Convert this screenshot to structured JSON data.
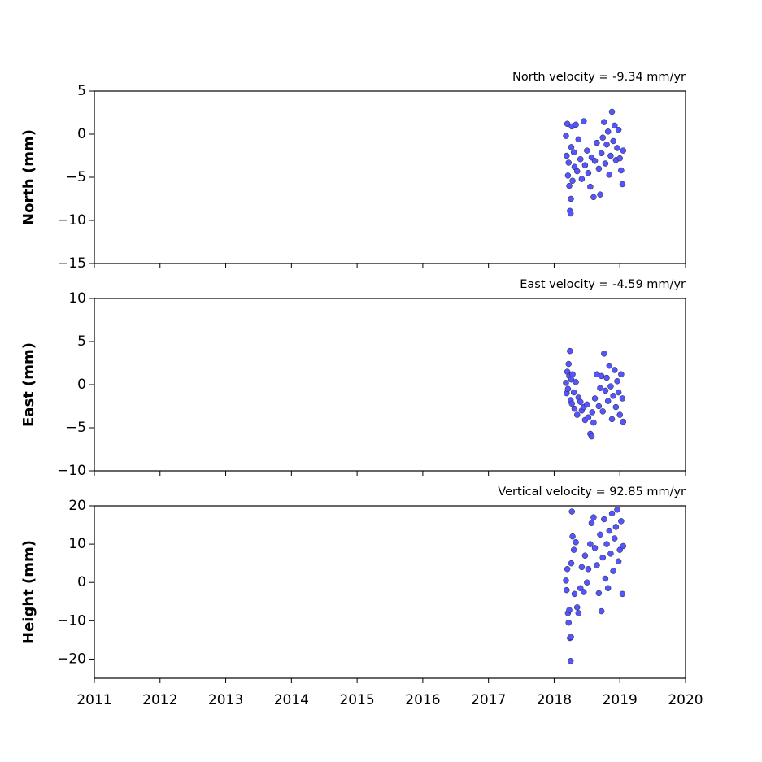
{
  "chart_data": [
    {
      "type": "scatter",
      "title": "North velocity = -9.34 mm/yr",
      "ylabel": "North (mm)",
      "color": "#5555ff",
      "x": [
        2018.18,
        2018.19,
        2018.2,
        2018.21,
        2018.22,
        2018.23,
        2018.24,
        2018.25,
        2018.255,
        2018.26,
        2018.27,
        2018.28,
        2018.3,
        2018.31,
        2018.33,
        2018.35,
        2018.37,
        2018.4,
        2018.42,
        2018.45,
        2018.47,
        2018.5,
        2018.52,
        2018.55,
        2018.57,
        2018.6,
        2018.62,
        2018.65,
        2018.68,
        2018.7,
        2018.72,
        2018.74,
        2018.76,
        2018.78,
        2018.8,
        2018.82,
        2018.84,
        2018.86,
        2018.88,
        2018.9,
        2018.92,
        2018.94,
        2018.96,
        2018.98,
        2019.0,
        2019.02,
        2019.04,
        2019.05
      ],
      "values": [
        -0.2,
        -2.5,
        1.2,
        -4.8,
        -3.3,
        -6.0,
        -8.9,
        -9.2,
        -7.5,
        -1.5,
        0.9,
        -5.4,
        -2.1,
        -3.8,
        1.1,
        -4.3,
        -0.6,
        -2.9,
        -5.2,
        1.5,
        -3.6,
        -1.9,
        -4.5,
        -6.1,
        -2.7,
        -7.3,
        -3.1,
        -1.0,
        -4.0,
        -7.0,
        -2.2,
        -0.4,
        1.4,
        -3.4,
        -1.2,
        0.3,
        -4.7,
        -2.5,
        2.6,
        -0.8,
        1.0,
        -3.0,
        -1.6,
        0.5,
        -2.8,
        -4.2,
        -5.8,
        -1.9
      ],
      "xlim": [
        2011,
        2020
      ],
      "xticks": [
        2011,
        2012,
        2013,
        2014,
        2015,
        2016,
        2017,
        2018,
        2019,
        2020
      ],
      "ylim": [
        -15,
        5
      ],
      "yticks": [
        {
          "value": -15,
          "label": "−15"
        },
        {
          "value": -10,
          "label": "−10"
        },
        {
          "value": -5,
          "label": "−5"
        },
        0,
        5
      ]
    },
    {
      "type": "scatter",
      "title": "East velocity = -4.59 mm/yr",
      "ylabel": "East (mm)",
      "color": "#5555ff",
      "x": [
        2018.18,
        2018.19,
        2018.2,
        2018.21,
        2018.22,
        2018.23,
        2018.24,
        2018.25,
        2018.26,
        2018.27,
        2018.28,
        2018.3,
        2018.31,
        2018.33,
        2018.35,
        2018.37,
        2018.4,
        2018.42,
        2018.45,
        2018.47,
        2018.5,
        2018.52,
        2018.55,
        2018.57,
        2018.58,
        2018.6,
        2018.62,
        2018.65,
        2018.68,
        2018.7,
        2018.72,
        2018.74,
        2018.76,
        2018.78,
        2018.8,
        2018.82,
        2018.84,
        2018.86,
        2018.88,
        2018.9,
        2018.92,
        2018.94,
        2018.96,
        2018.98,
        2019.0,
        2019.02,
        2019.04,
        2019.05
      ],
      "values": [
        0.2,
        -1.0,
        1.5,
        -0.5,
        2.4,
        1.0,
        3.9,
        -1.8,
        0.6,
        -2.2,
        1.2,
        -0.9,
        -2.8,
        0.3,
        -3.5,
        -1.5,
        -2.0,
        -3.0,
        -2.6,
        -4.1,
        -2.3,
        -3.8,
        -5.7,
        -6.0,
        -3.2,
        -4.4,
        -1.6,
        1.2,
        -2.5,
        -0.4,
        1.0,
        -3.1,
        3.6,
        -0.7,
        0.8,
        -1.9,
        2.2,
        -0.2,
        -4.0,
        -1.3,
        1.7,
        -2.6,
        0.4,
        -0.9,
        -3.5,
        1.2,
        -1.6,
        -4.3
      ],
      "xlim": [
        2011,
        2020
      ],
      "xticks": [
        2011,
        2012,
        2013,
        2014,
        2015,
        2016,
        2017,
        2018,
        2019,
        2020
      ],
      "ylim": [
        -10,
        10
      ],
      "yticks": [
        {
          "value": -10,
          "label": "−10"
        },
        {
          "value": -5,
          "label": "−5"
        },
        0,
        5,
        10
      ]
    },
    {
      "type": "scatter",
      "title": "Vertical velocity = 92.85 mm/yr",
      "ylabel": "Height (mm)",
      "color": "#5555ff",
      "x": [
        2018.18,
        2018.19,
        2018.2,
        2018.21,
        2018.22,
        2018.23,
        2018.24,
        2018.25,
        2018.255,
        2018.26,
        2018.27,
        2018.28,
        2018.3,
        2018.31,
        2018.33,
        2018.35,
        2018.37,
        2018.4,
        2018.42,
        2018.45,
        2018.47,
        2018.5,
        2018.52,
        2018.55,
        2018.57,
        2018.6,
        2018.62,
        2018.65,
        2018.68,
        2018.7,
        2018.72,
        2018.74,
        2018.76,
        2018.78,
        2018.8,
        2018.82,
        2018.84,
        2018.86,
        2018.88,
        2018.9,
        2018.92,
        2018.94,
        2018.96,
        2018.98,
        2019.0,
        2019.02,
        2019.04,
        2019.05
      ],
      "values": [
        0.5,
        -2.0,
        3.5,
        -8.0,
        -10.5,
        -7.2,
        -14.5,
        -20.5,
        -14.2,
        5.0,
        18.5,
        12.0,
        8.5,
        -3.0,
        10.5,
        -6.5,
        -8.0,
        -1.5,
        4.0,
        -2.5,
        7.0,
        0.0,
        3.5,
        10.0,
        15.5,
        17.0,
        9.0,
        4.5,
        -2.8,
        12.5,
        -7.5,
        6.5,
        16.5,
        1.0,
        10.0,
        -1.5,
        13.5,
        7.5,
        18.0,
        3.0,
        11.5,
        14.5,
        19.0,
        5.5,
        8.5,
        16.0,
        -3.0,
        9.5
      ],
      "xlim": [
        2011,
        2020
      ],
      "xticks": [
        2011,
        2012,
        2013,
        2014,
        2015,
        2016,
        2017,
        2018,
        2019,
        2020
      ],
      "ylim": [
        -25,
        20
      ],
      "yticks": [
        {
          "value": -20,
          "label": "−20"
        },
        {
          "value": -10,
          "label": "−10"
        },
        0,
        10,
        20
      ]
    }
  ]
}
